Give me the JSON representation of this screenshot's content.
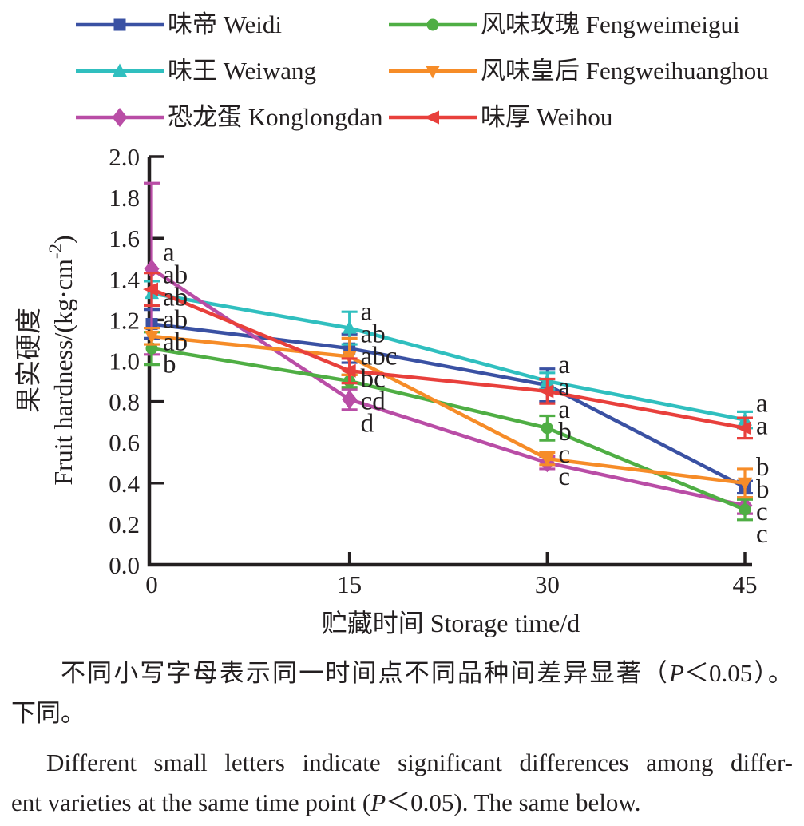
{
  "chart_data": {
    "type": "line",
    "x": [
      0,
      15,
      30,
      45
    ],
    "xlabel": "贮藏时间 Storage time/d",
    "ylabel_cn": "果实硬度",
    "ylabel_en_pre": "Fruit hardness/(kg·cm",
    "ylabel_en_sup": "-2",
    "ylabel_en_post": ")",
    "ylim": [
      0.0,
      2.0
    ],
    "xticks": {
      "labels": [
        "0",
        "15",
        "30",
        "45"
      ],
      "values": [
        0,
        15,
        30,
        45
      ]
    },
    "yticks": {
      "labels": [
        "0.0",
        "0.2",
        "0.4",
        "0.6",
        "0.8",
        "1.0",
        "1.2",
        "1.4",
        "1.6",
        "1.8",
        "2.0"
      ],
      "values": [
        0.0,
        0.2,
        0.4,
        0.6,
        0.8,
        1.0,
        1.2,
        1.4,
        1.6,
        1.8,
        2.0
      ],
      "marks": [
        0.4,
        0.8,
        1.2,
        1.6,
        2.0
      ]
    },
    "grid": false,
    "legend_position": "top",
    "series": [
      {
        "id": "weidi",
        "name": "味帝 Weidi",
        "color": "#3a51a3",
        "marker": "square",
        "values": [
          1.18,
          1.06,
          0.88,
          0.38
        ],
        "errors": [
          0.07,
          0.07,
          0.08,
          0.03
        ],
        "letters": [
          "ab",
          "ab",
          "a",
          "b"
        ]
      },
      {
        "id": "weiwang",
        "name": "味王 Weiwang",
        "color": "#30bfbf",
        "marker": "triangle-up",
        "values": [
          1.33,
          1.16,
          0.9,
          0.71
        ],
        "errors": [
          0.06,
          0.08,
          0.04,
          0.04
        ],
        "letters": [
          "ab",
          "a",
          "a",
          "a"
        ]
      },
      {
        "id": "konglongdan",
        "name": "恐龙蛋 Konglongdan",
        "color": "#b94da6",
        "marker": "diamond",
        "values": [
          1.45,
          0.81,
          0.5,
          0.29
        ],
        "errors": [
          0.42,
          0.05,
          0.03,
          0.04
        ],
        "letters": [
          "a",
          "d",
          "c",
          "c"
        ]
      },
      {
        "id": "fengweimeigui",
        "name": "风味玫瑰 Fengweimeigui",
        "color": "#4fae44",
        "marker": "circle",
        "values": [
          1.06,
          0.9,
          0.67,
          0.27
        ],
        "errors": [
          0.08,
          0.03,
          0.06,
          0.05
        ],
        "letters": [
          "b",
          "cd",
          "b",
          "c"
        ]
      },
      {
        "id": "fengweihuanghou",
        "name": "风味皇后 Fengweihuanghou",
        "color": "#f68c28",
        "marker": "triangle-down",
        "values": [
          1.12,
          1.02,
          0.52,
          0.4
        ],
        "errors": [
          0.04,
          0.09,
          0.03,
          0.07
        ],
        "letters": [
          "ab",
          "abc",
          "c",
          "b"
        ]
      },
      {
        "id": "weihou",
        "name": "味厚 Weihou",
        "color": "#e8403c",
        "marker": "triangle-left",
        "values": [
          1.35,
          0.95,
          0.85,
          0.67
        ],
        "errors": [
          0.08,
          0.06,
          0.06,
          0.05
        ],
        "letters": [
          "ab",
          "bc",
          "a",
          "a"
        ]
      }
    ]
  },
  "captions": {
    "cn_line1_pre": "不同小写字母表示同一时间点不同品种间差异显著（",
    "cn_p": "P",
    "cn_line1_post": "＜0.05）。",
    "cn_line2": "下同。",
    "en_line1": "Different small letters indicate significant differences among differ-",
    "en_line2_pre": "ent varieties at the same time point (",
    "en_p": "P",
    "en_line2_post": "＜0.05). The same below."
  }
}
